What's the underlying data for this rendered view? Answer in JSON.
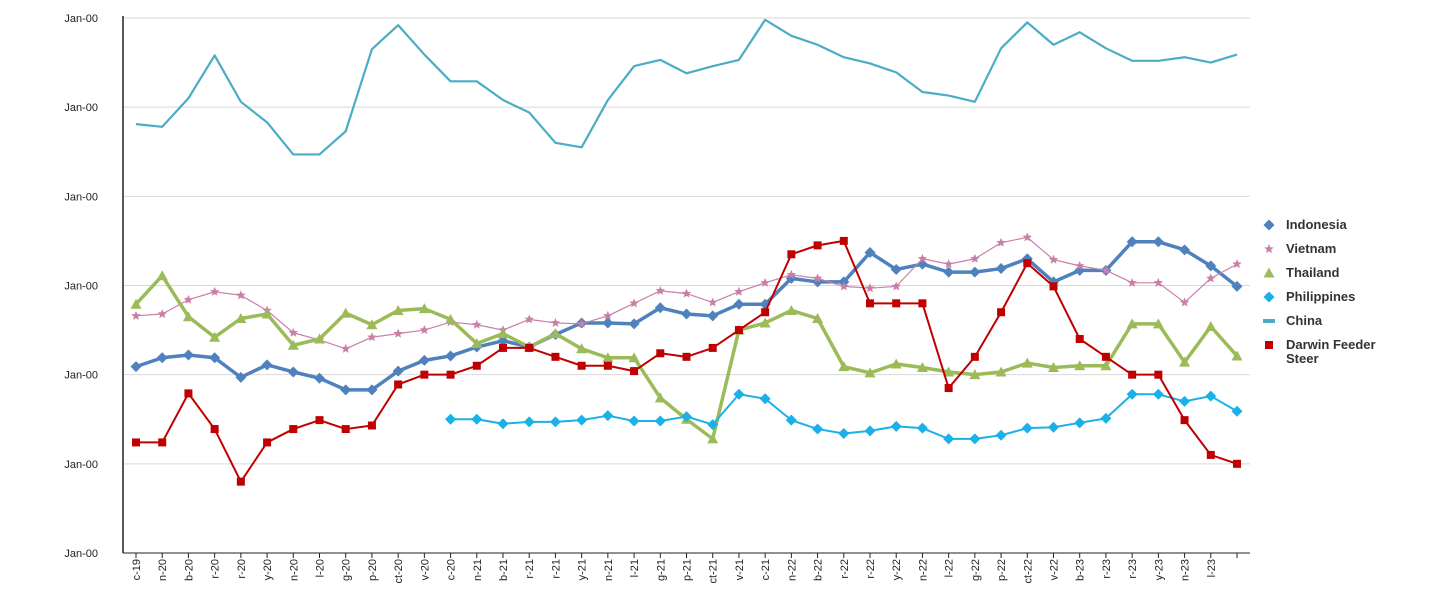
{
  "chart_data": {
    "type": "line",
    "categories": [
      "c-19",
      "n-20",
      "b-20",
      "r-20",
      "r-20",
      "y-20",
      "n-20",
      "l-20",
      "g-20",
      "p-20",
      "ct-20",
      "v-20",
      "c-20",
      "n-21",
      "b-21",
      "r-21",
      "r-21",
      "y-21",
      "n-21",
      "l-21",
      "g-21",
      "p-21",
      "ct-21",
      "v-21",
      "c-21",
      "n-22",
      "b-22",
      "r-22",
      "r-22",
      "y-22",
      "n-22",
      "l-22",
      "g-22",
      "p-22",
      "ct-22",
      "v-22",
      "b-23",
      "r-23",
      "r-23",
      "y-23",
      "n-23",
      "l-23",
      null
    ],
    "ylim": [
      0,
      6
    ],
    "yticks": [
      {
        "value": 0,
        "label": "Jan-00"
      },
      {
        "value": 1,
        "label": "Jan-00"
      },
      {
        "value": 2,
        "label": "Jan-00"
      },
      {
        "value": 3,
        "label": "Jan-00"
      },
      {
        "value": 4,
        "label": "Jan-00"
      },
      {
        "value": 5,
        "label": "Jan-00"
      },
      {
        "value": 6,
        "label": "Jan-00"
      }
    ],
    "grid": true,
    "legend": "right",
    "series": [
      {
        "name": "Indonesia",
        "color": "#4f81bd",
        "marker": "diamond",
        "width": 3.5,
        "values": [
          2.09,
          2.19,
          2.22,
          2.19,
          1.97,
          2.11,
          2.03,
          1.96,
          1.83,
          1.83,
          2.04,
          2.16,
          2.21,
          2.31,
          2.38,
          2.31,
          2.45,
          2.58,
          2.58,
          2.57,
          2.75,
          2.68,
          2.66,
          2.79,
          2.79,
          3.08,
          3.04,
          3.04,
          3.37,
          3.18,
          3.24,
          3.15,
          3.15,
          3.19,
          3.3,
          3.04,
          3.17,
          3.17,
          3.49,
          3.49,
          3.4,
          3.22,
          2.99
        ]
      },
      {
        "name": "Vietnam",
        "color": "#c97fa8",
        "marker": "star",
        "width": 1.2,
        "values": [
          2.66,
          2.68,
          2.84,
          2.93,
          2.89,
          2.72,
          2.47,
          2.39,
          2.29,
          2.42,
          2.46,
          2.5,
          2.59,
          2.56,
          2.5,
          2.62,
          2.58,
          2.57,
          2.66,
          2.8,
          2.94,
          2.91,
          2.81,
          2.93,
          3.03,
          3.12,
          3.08,
          2.99,
          2.97,
          2.99,
          3.3,
          3.24,
          3.3,
          3.48,
          3.54,
          3.29,
          3.22,
          3.17,
          3.03,
          3.03,
          2.81,
          3.08,
          3.24
        ]
      },
      {
        "name": "Thailand",
        "color": "#9bbb59",
        "marker": "triangle",
        "width": 3.5,
        "values": [
          2.79,
          3.11,
          2.65,
          2.42,
          2.63,
          2.68,
          2.33,
          2.4,
          2.69,
          2.56,
          2.72,
          2.74,
          2.62,
          2.35,
          2.46,
          2.31,
          2.46,
          2.29,
          2.19,
          2.19,
          1.74,
          1.5,
          1.28,
          2.5,
          2.58,
          2.72,
          2.63,
          2.09,
          2.02,
          2.12,
          2.08,
          2.03,
          2.0,
          2.03,
          2.13,
          2.08,
          2.1,
          2.1,
          2.57,
          2.57,
          2.14,
          2.54,
          2.21
        ]
      },
      {
        "name": "Philippines",
        "color": "#1ab0e8",
        "marker": "diamond",
        "width": 2,
        "values": [
          null,
          null,
          null,
          null,
          null,
          null,
          null,
          null,
          null,
          null,
          null,
          null,
          1.5,
          1.5,
          1.45,
          1.47,
          1.47,
          1.49,
          1.54,
          1.48,
          1.48,
          1.53,
          1.44,
          1.78,
          1.73,
          1.49,
          1.39,
          1.34,
          1.37,
          1.42,
          1.4,
          1.28,
          1.28,
          1.32,
          1.4,
          1.41,
          1.46,
          1.51,
          1.78,
          1.78,
          1.7,
          1.76,
          1.59
        ]
      },
      {
        "name": "China",
        "color": "#4bacc6",
        "marker": "none",
        "width": 2.2,
        "values": [
          4.81,
          4.78,
          5.1,
          5.58,
          5.06,
          4.83,
          4.47,
          4.47,
          4.73,
          5.65,
          5.92,
          5.59,
          5.29,
          5.29,
          5.08,
          4.94,
          4.6,
          4.55,
          5.08,
          5.46,
          5.53,
          5.38,
          5.46,
          5.53,
          5.98,
          5.8,
          5.7,
          5.56,
          5.49,
          5.39,
          5.17,
          5.13,
          5.06,
          5.66,
          5.95,
          5.7,
          5.84,
          5.66,
          5.52,
          5.52,
          5.56,
          5.5,
          5.59
        ]
      },
      {
        "name": "Darwin Feeder Steer",
        "color": "#c00000",
        "marker": "square",
        "width": 2,
        "values": [
          1.24,
          1.24,
          1.79,
          1.39,
          0.8,
          1.24,
          1.39,
          1.49,
          1.39,
          1.43,
          1.89,
          2.0,
          2.0,
          2.1,
          2.3,
          2.3,
          2.2,
          2.1,
          2.1,
          2.04,
          2.24,
          2.2,
          2.3,
          2.5,
          2.7,
          3.35,
          3.45,
          3.5,
          2.8,
          2.8,
          2.8,
          1.85,
          2.2,
          2.7,
          3.25,
          2.99,
          2.4,
          2.2,
          2.0,
          2.0,
          1.49,
          1.1,
          1.0
        ]
      }
    ]
  }
}
